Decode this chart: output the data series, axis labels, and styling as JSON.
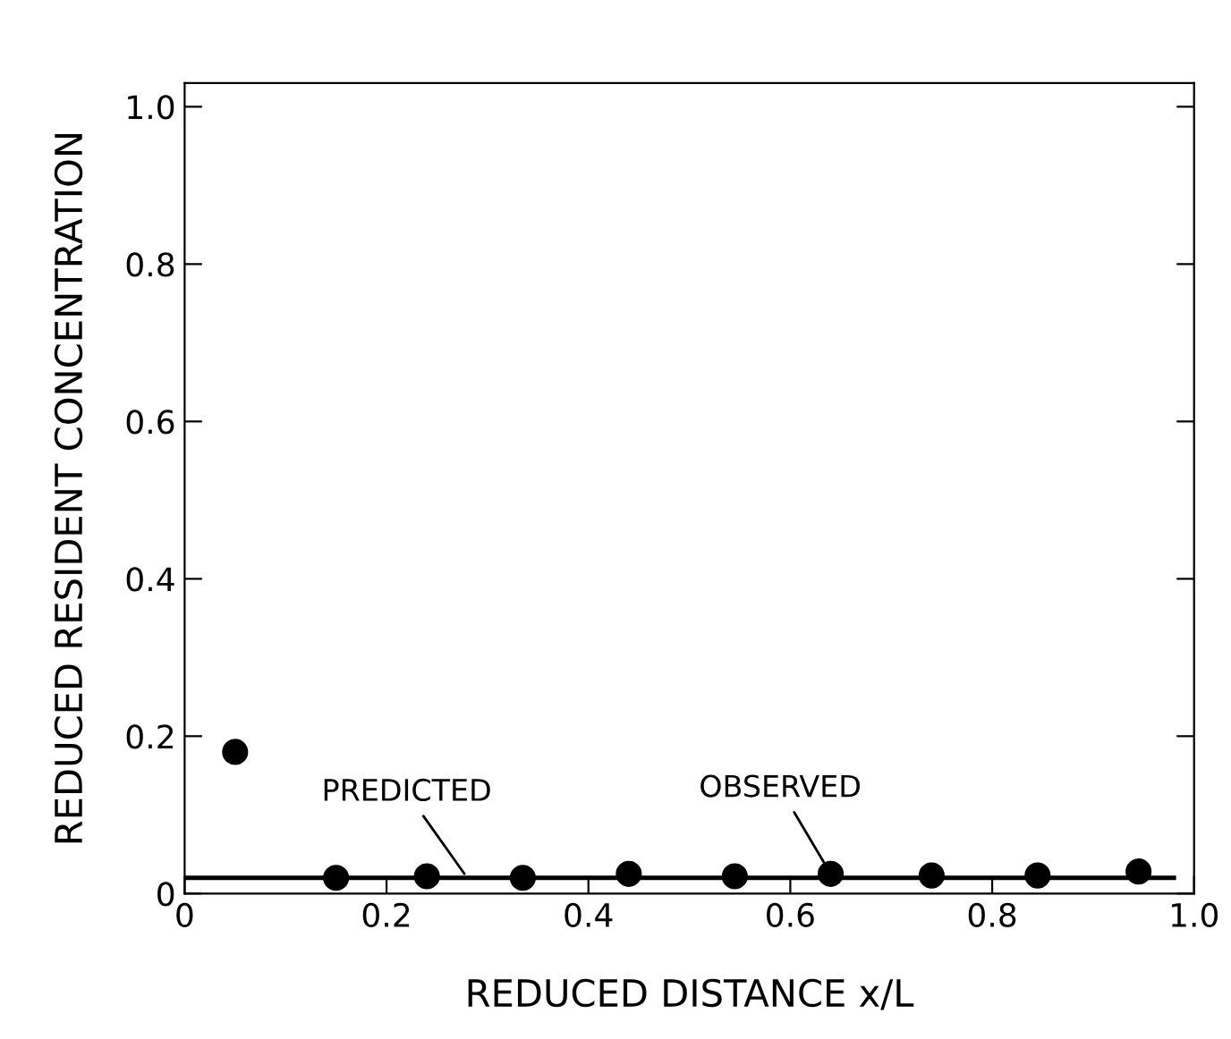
{
  "chart_data": {
    "type": "scatter",
    "xlabel": "REDUCED DISTANCE x/L",
    "ylabel": "REDUCED RESIDENT CONCENTRATION",
    "xlim": [
      0,
      1.0
    ],
    "ylim": [
      0,
      1.03
    ],
    "xticks": [
      0,
      0.2,
      0.4,
      0.6,
      0.8,
      {
        "value": 1,
        "label": "1.0"
      }
    ],
    "yticks": [
      0,
      0.2,
      0.4,
      0.6,
      0.8,
      {
        "value": 1,
        "label": "1.0"
      }
    ],
    "grid": false,
    "legend": false,
    "series": [
      {
        "type": "line",
        "color": "#000000",
        "x": [
          0,
          0.98
        ],
        "values": [
          0.02,
          0.02
        ],
        "marker": "none",
        "line_style": "solid"
      },
      {
        "color": "#000000",
        "x": [
          0.05,
          0.15,
          0.24,
          0.335,
          0.44,
          0.545,
          0.64,
          0.74,
          0.845,
          0.945
        ],
        "values": [
          0.18,
          0.02,
          0.022,
          0.02,
          0.025,
          0.022,
          0.025,
          0.023,
          0.023,
          0.028
        ],
        "marker": "circle"
      }
    ],
    "annotations": [
      {
        "text": "PREDICTED",
        "x": 0.28,
        "y": 0.02
      },
      {
        "text": "OBSERVED",
        "x": 0.64,
        "y": 0.025
      }
    ]
  }
}
